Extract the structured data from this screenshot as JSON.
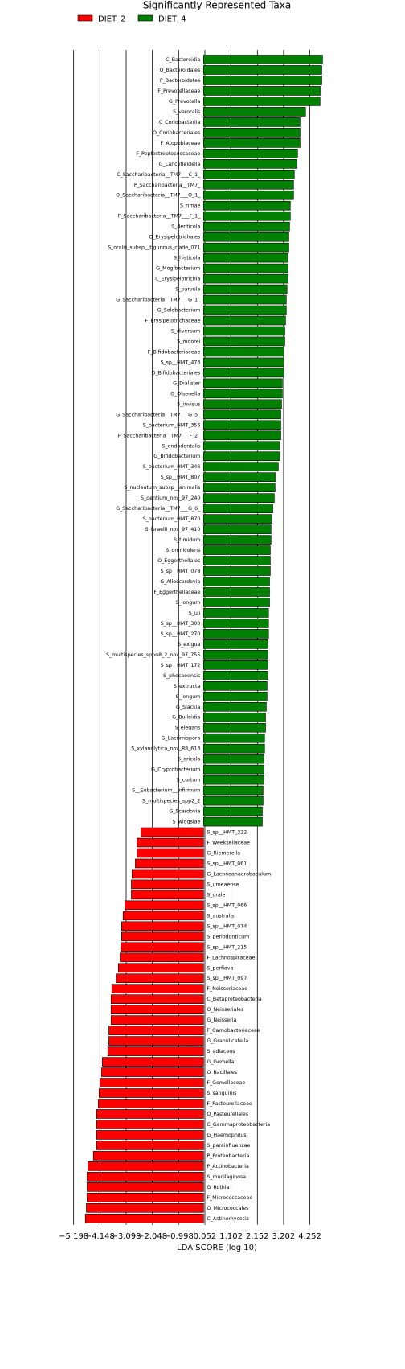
{
  "chart_data": {
    "type": "bar",
    "orientation": "horizontal",
    "title": "Significantly Represented Taxa",
    "x_label": "LDA SCORE (log 10)",
    "categories": [
      "C_Bacteroidia",
      "O_Bacteroidales",
      "P_Bacteroidetes",
      "F_Prevotellaceae",
      "G_Prevotella",
      "S_veroralis",
      "C_Coriobacteriia",
      "O_Coriobacteriales",
      "F_Atopobiaceae",
      "F_Peptostreptococcaceae",
      "G_Lancefieldella",
      "C_Saccharibacteria__TM7___C_1_",
      "P_Saccharibacteria__TM7_",
      "O_Saccharibacteria__TM7___O_1_",
      "S_rimae",
      "F_Saccharibacteria__TM7___F_1_",
      "S_denticola",
      "O_Erysipelotrichales",
      "S_oralis_subsp__tigurinus_clade_071",
      "S_histicola",
      "G_Mogibacterium",
      "C_Erysipelotrichia",
      "S_parvula",
      "G_Saccharibacteria__TM7___G_1_",
      "G_Solobacterium",
      "F_Erysipelotrichaceae",
      "S_diversum",
      "S_moorei",
      "F_Bifidobacteriaceae",
      "S_sp__HMT_473",
      "O_Bifidobacteriales",
      "G_Dialister",
      "G_Olsenella",
      "S_invisus",
      "G_Saccharibacteria__TM7___G_5_",
      "S_bacterium_HMT_356",
      "F_Saccharibacteria__TM7___F_2_",
      "S_endodontalis",
      "G_Bifidobacterium",
      "S_bacterium_HMT_346",
      "S_sp__HMT_807",
      "S_nucleatum_subsp__animalis",
      "S_dentium_nov_97_240",
      "G_Saccharibacteria__TM7___G_6_",
      "S_bacterium_HMT_870",
      "S_israelii_nov_97_410",
      "S_timidum",
      "S_omnicolens",
      "O_Eggerthellales",
      "S_sp__HMT_078",
      "G_Alloscardovia",
      "F_Eggerthellaceae",
      "S_longum",
      "S_uli",
      "S_sp__HMT_300",
      "S_sp__HMT_270",
      "S_exigua",
      "S_multispecies_sppn8_2_nov_97_755",
      "S_sp__HMT_172",
      "S_phocaeensis",
      "S_extructa",
      "S_longum",
      "G_Slackia",
      "G_Bulleidia",
      "S_elegans",
      "G_Lacrimispora",
      "S_xylanolytica_nov_88_613",
      "S_oricola",
      "G_Cryptobacterium",
      "S_curtum",
      "S__Eubacterium__infirmum",
      "S_multispecies_spp2_2",
      "G_Scardovia",
      "S_wiggsiae",
      "S_sp__HMT_322",
      "F_Weeksellaceae",
      "G_Riemerella",
      "S_sp__HMT_061",
      "G_Lachnoanaerobaculum",
      "S_umeaense",
      "S_orale",
      "S_sp__HMT_066",
      "S_australis",
      "S_sp__HMT_074",
      "S_periodonticum",
      "S_sp__HMT_215",
      "F_Lachnospiraceae",
      "S_perflava",
      "S_sp__HMT_097",
      "F_Neisseriaceae",
      "C_Betaproteobacteria",
      "O_Neisseriales",
      "G_Neisseria",
      "F_Carnobacteriaceae",
      "G_Granulicatella",
      "S_adiacens",
      "G_Gemella",
      "O_Bacillales",
      "F_Gemellaceae",
      "S_sanguinis",
      "F_Pasteurellaceae",
      "O_Pasteurellales",
      "C_Gammaproteobacteria",
      "G_Haemophilus",
      "S_parainfluenzae",
      "P_Proteobacteria",
      "P_Actinobacteria",
      "S_mucilaginosa",
      "G_Rothia",
      "F_Micrococcaceae",
      "O_Micrococcales",
      "C_Actinomycetia"
    ],
    "series": [
      {
        "name": "DIET_2",
        "color": "#ff0000",
        "values": [
          null,
          null,
          null,
          null,
          null,
          null,
          null,
          null,
          null,
          null,
          null,
          null,
          null,
          null,
          null,
          null,
          null,
          null,
          null,
          null,
          null,
          null,
          null,
          null,
          null,
          null,
          null,
          null,
          null,
          null,
          null,
          null,
          null,
          null,
          null,
          null,
          null,
          null,
          null,
          null,
          null,
          null,
          null,
          null,
          null,
          null,
          null,
          null,
          null,
          null,
          null,
          null,
          null,
          null,
          null,
          null,
          null,
          null,
          null,
          null,
          null,
          null,
          null,
          null,
          null,
          null,
          null,
          null,
          null,
          null,
          null,
          null,
          null,
          null,
          -2.51,
          -2.67,
          -2.67,
          -2.73,
          -2.86,
          -2.89,
          -2.89,
          -3.15,
          -3.22,
          -3.28,
          -3.28,
          -3.31,
          -3.34,
          -3.41,
          -3.5,
          -3.67,
          -3.7,
          -3.7,
          -3.7,
          -3.79,
          -3.79,
          -3.83,
          -4.05,
          -4.08,
          -4.15,
          -4.18,
          -4.21,
          -4.28,
          -4.28,
          -4.28,
          -4.28,
          -4.41,
          -4.63,
          -4.66,
          -4.66,
          -4.66,
          -4.69,
          -4.73
        ]
      },
      {
        "name": "DIET_4",
        "color": "#008000",
        "values": [
          4.76,
          4.73,
          4.73,
          4.69,
          4.66,
          4.08,
          3.86,
          3.86,
          3.86,
          3.76,
          3.73,
          3.63,
          3.6,
          3.6,
          3.47,
          3.47,
          3.44,
          3.41,
          3.41,
          3.38,
          3.38,
          3.38,
          3.34,
          3.31,
          3.31,
          3.28,
          3.25,
          3.25,
          3.22,
          3.22,
          3.22,
          3.15,
          3.15,
          3.12,
          3.09,
          3.09,
          3.09,
          3.05,
          3.05,
          2.99,
          2.89,
          2.86,
          2.83,
          2.77,
          2.73,
          2.7,
          2.7,
          2.67,
          2.67,
          2.67,
          2.64,
          2.64,
          2.64,
          2.6,
          2.6,
          2.6,
          2.57,
          2.57,
          2.57,
          2.57,
          2.54,
          2.54,
          2.51,
          2.48,
          2.48,
          2.44,
          2.44,
          2.41,
          2.41,
          2.41,
          2.38,
          2.38,
          2.35,
          2.35,
          null,
          null,
          null,
          null,
          null,
          null,
          null,
          null,
          null,
          null,
          null,
          null,
          null,
          null,
          null,
          null,
          null,
          null,
          null,
          null,
          null,
          null,
          null,
          null,
          null,
          null,
          null,
          null,
          null,
          null,
          null,
          null,
          null,
          null,
          null,
          null,
          null,
          null
        ]
      }
    ],
    "xlim": [
      -5.3,
      5.3
    ],
    "xticks": [
      {
        "value": -5.198,
        "label": "−5.198"
      },
      {
        "value": -4.148,
        "label": "−4.148"
      },
      {
        "value": -3.098,
        "label": "−3.098"
      },
      {
        "value": -2.048,
        "label": "−2.048"
      },
      {
        "value": -0.998,
        "label": "−0.998"
      },
      0.052,
      1.102,
      2.152,
      3.202,
      4.252
    ],
    "grid": true,
    "legend": "top-left"
  }
}
